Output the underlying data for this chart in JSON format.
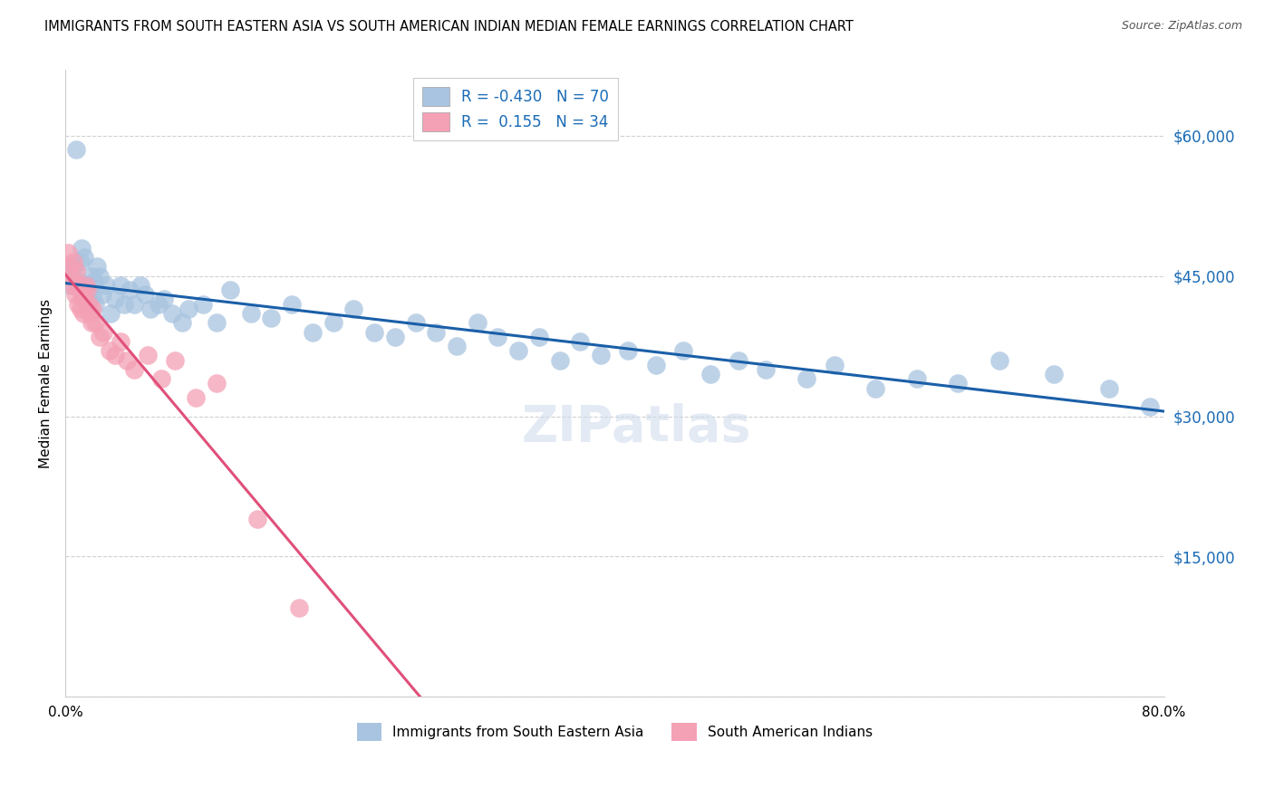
{
  "title": "IMMIGRANTS FROM SOUTH EASTERN ASIA VS SOUTH AMERICAN INDIAN MEDIAN FEMALE EARNINGS CORRELATION CHART",
  "source": "Source: ZipAtlas.com",
  "ylabel": "Median Female Earnings",
  "blue_label": "Immigrants from South Eastern Asia",
  "pink_label": "South American Indians",
  "blue_R": -0.43,
  "blue_N": 70,
  "pink_R": 0.155,
  "pink_N": 34,
  "xlim": [
    0.0,
    0.8
  ],
  "ylim": [
    0,
    67000
  ],
  "yticks": [
    0,
    15000,
    30000,
    45000,
    60000
  ],
  "ytick_labels": [
    "",
    "$15,000",
    "$30,000",
    "$45,000",
    "$60,000"
  ],
  "xticks": [
    0.0,
    0.1,
    0.2,
    0.3,
    0.4,
    0.5,
    0.6,
    0.7,
    0.8
  ],
  "xtick_labels": [
    "0.0%",
    "",
    "",
    "",
    "",
    "",
    "",
    "",
    "80.0%"
  ],
  "blue_color": "#a8c4e0",
  "blue_line_color": "#1a5fa8",
  "pink_color": "#f4a0b5",
  "pink_line_color": "#e0507a",
  "dashed_line_color": "#c8c8c8",
  "blue_x": [
    0.004,
    0.006,
    0.008,
    0.01,
    0.011,
    0.012,
    0.013,
    0.014,
    0.015,
    0.016,
    0.017,
    0.018,
    0.019,
    0.02,
    0.021,
    0.022,
    0.023,
    0.025,
    0.027,
    0.03,
    0.033,
    0.036,
    0.04,
    0.043,
    0.047,
    0.05,
    0.055,
    0.058,
    0.062,
    0.068,
    0.072,
    0.078,
    0.085,
    0.09,
    0.1,
    0.11,
    0.12,
    0.135,
    0.15,
    0.165,
    0.18,
    0.195,
    0.21,
    0.225,
    0.24,
    0.255,
    0.27,
    0.285,
    0.3,
    0.315,
    0.33,
    0.345,
    0.36,
    0.375,
    0.39,
    0.41,
    0.43,
    0.45,
    0.47,
    0.49,
    0.51,
    0.54,
    0.56,
    0.59,
    0.62,
    0.65,
    0.68,
    0.72,
    0.76,
    0.79
  ],
  "blue_y": [
    44000,
    46000,
    58500,
    44500,
    46500,
    48000,
    43000,
    47000,
    44000,
    42000,
    43500,
    44000,
    45000,
    43000,
    44500,
    42000,
    46000,
    45000,
    43000,
    44000,
    41000,
    42500,
    44000,
    42000,
    43500,
    42000,
    44000,
    43000,
    41500,
    42000,
    42500,
    41000,
    40000,
    41500,
    42000,
    40000,
    43500,
    41000,
    40500,
    42000,
    39000,
    40000,
    41500,
    39000,
    38500,
    40000,
    39000,
    37500,
    40000,
    38500,
    37000,
    38500,
    36000,
    38000,
    36500,
    37000,
    35500,
    37000,
    34500,
    36000,
    35000,
    34000,
    35500,
    33000,
    34000,
    33500,
    36000,
    34500,
    33000,
    31000
  ],
  "pink_x": [
    0.002,
    0.003,
    0.004,
    0.005,
    0.006,
    0.007,
    0.008,
    0.009,
    0.01,
    0.011,
    0.012,
    0.013,
    0.014,
    0.015,
    0.016,
    0.017,
    0.018,
    0.019,
    0.02,
    0.022,
    0.025,
    0.028,
    0.032,
    0.036,
    0.04,
    0.045,
    0.05,
    0.06,
    0.07,
    0.08,
    0.095,
    0.11,
    0.14,
    0.17
  ],
  "pink_y": [
    47500,
    46000,
    45000,
    44000,
    46500,
    43000,
    45500,
    42000,
    44000,
    41500,
    43000,
    41000,
    42500,
    44000,
    43500,
    42000,
    41000,
    40000,
    41500,
    40000,
    38500,
    39000,
    37000,
    36500,
    38000,
    36000,
    35000,
    36500,
    34000,
    36000,
    32000,
    33500,
    19000,
    9500
  ]
}
